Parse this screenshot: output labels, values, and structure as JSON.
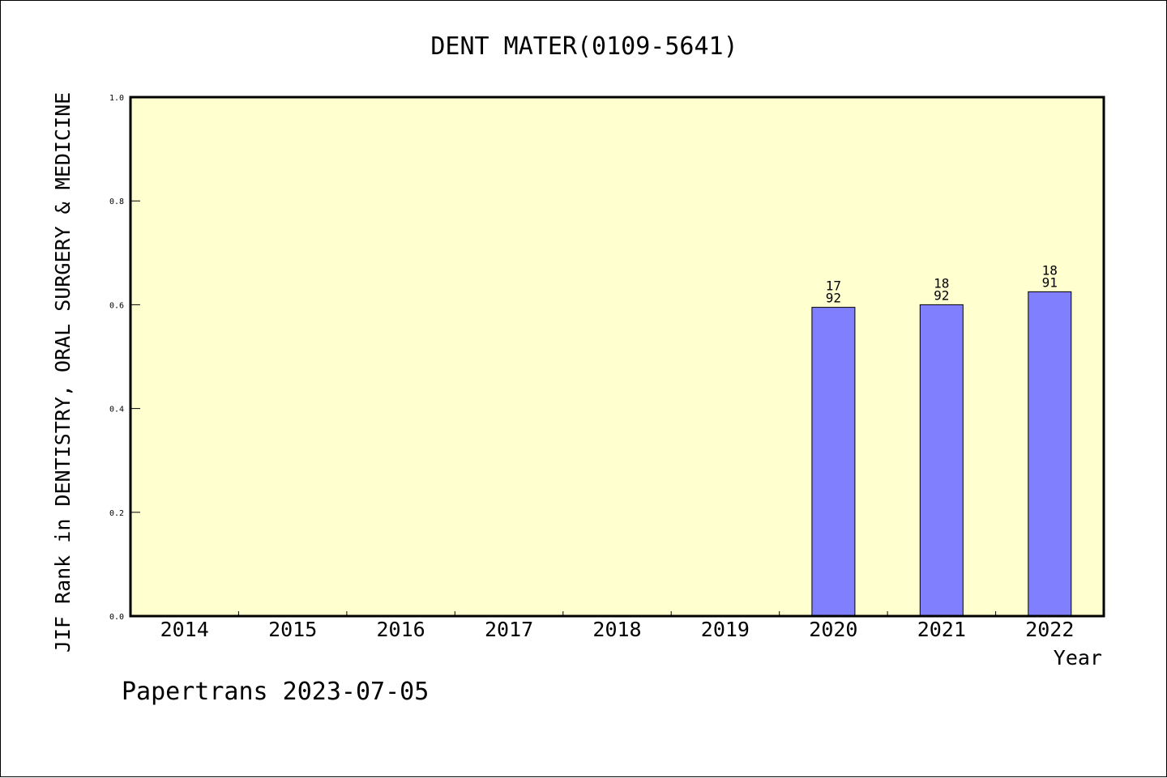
{
  "chart_data": {
    "type": "bar",
    "title": "DENT MATER(0109-5641)",
    "xlabel": "Year",
    "ylabel": "JIF Rank in DENTISTRY, ORAL SURGERY & MEDICINE",
    "categories": [
      "2014",
      "2015",
      "2016",
      "2017",
      "2018",
      "2019",
      "2020",
      "2021",
      "2022"
    ],
    "values": [
      null,
      null,
      null,
      null,
      null,
      null,
      0.595,
      0.6,
      0.625
    ],
    "bar_labels": [
      null,
      null,
      null,
      null,
      null,
      null,
      [
        "17",
        "92"
      ],
      [
        "18",
        "92"
      ],
      [
        "18",
        "91"
      ]
    ],
    "ylim": [
      0,
      1.0
    ],
    "yticks": [
      0.0,
      0.2,
      0.4,
      0.6,
      0.8,
      1.0
    ],
    "ytick_labels": [
      "0.0",
      "0.2",
      "0.4",
      "0.6",
      "0.8",
      "1.0"
    ],
    "grid": false,
    "legend": null
  },
  "footer": {
    "text": "Papertrans 2023-07-05"
  },
  "colors": {
    "plot_background": "#ffffd0",
    "bar_fill": "#8080ff",
    "bar_stroke": "#000000",
    "axis": "#000000"
  }
}
